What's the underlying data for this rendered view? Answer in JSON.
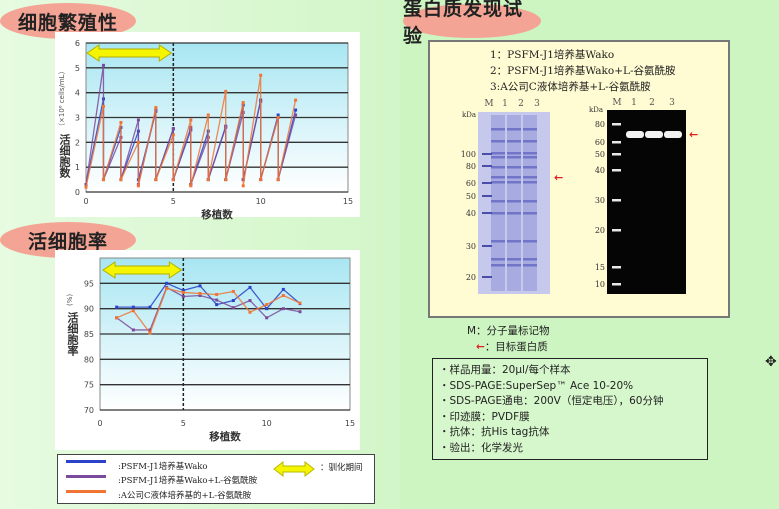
{
  "sections": {
    "proliferation_title": "细胞繁殖性",
    "viability_title": "活细胞率",
    "protein_title": "蛋白质发现试验"
  },
  "colors": {
    "wako": "#2c42c8",
    "wako_gln": "#7c4a9c",
    "companyA": "#f07434",
    "adapt_arrow": "#f5f500",
    "target_arrow": "#e02020",
    "title_pill": "#f4a494"
  },
  "chart_data": [
    {
      "type": "line",
      "title": "细胞繁殖性",
      "xlabel": "移植数",
      "ylabel": "活细胞数",
      "yunit": "（×10⁶ cells/mL）",
      "xlim": [
        0,
        15
      ],
      "ylim": [
        0,
        6
      ],
      "xticks": [
        "0",
        "5",
        "10",
        "15"
      ],
      "yticks": [
        "0",
        "1",
        "2",
        "3",
        "4",
        "5",
        "6"
      ],
      "grid": true,
      "adaptation_period": [
        0,
        5
      ],
      "series": [
        {
          "name": "PSFM-J1培养基Wako",
          "color": "#2c42c8",
          "points": [
            [
              0,
              0.3
            ],
            [
              1,
              3.75
            ],
            [
              1,
              0.5
            ],
            [
              2,
              2.6
            ],
            [
              2,
              0.5
            ],
            [
              3,
              2.45
            ],
            [
              3,
              0.5
            ],
            [
              4,
              3.25
            ],
            [
              4,
              0.5
            ],
            [
              5,
              2.55
            ],
            [
              5,
              0.5
            ],
            [
              6,
              2.5
            ],
            [
              6,
              0.3
            ],
            [
              7,
              2.45
            ],
            [
              7,
              0.5
            ],
            [
              8,
              2.65
            ],
            [
              8,
              0.5
            ],
            [
              9,
              3.5
            ],
            [
              9,
              0.5
            ],
            [
              10,
              3.7
            ],
            [
              10,
              0.5
            ],
            [
              11,
              3.1
            ],
            [
              11,
              0.5
            ],
            [
              12,
              3.3
            ]
          ]
        },
        {
          "name": "PSFM-J1培养基Wako+L-谷氨酰胺",
          "color": "#7c4a9c",
          "points": [
            [
              0,
              0.3
            ],
            [
              1,
              5.1
            ],
            [
              1,
              0.5
            ],
            [
              2,
              2.2
            ],
            [
              2,
              0.5
            ],
            [
              3,
              2.9
            ],
            [
              3,
              0.3
            ],
            [
              4,
              3.3
            ],
            [
              4,
              0.5
            ],
            [
              5,
              2.55
            ],
            [
              5,
              0.5
            ],
            [
              6,
              2.6
            ],
            [
              6,
              0.3
            ],
            [
              7,
              2.2
            ],
            [
              7,
              0.5
            ],
            [
              8,
              2.6
            ],
            [
              8,
              0.5
            ],
            [
              9,
              3.2
            ],
            [
              9,
              0.5
            ],
            [
              10,
              3.65
            ],
            [
              10,
              0.5
            ],
            [
              11,
              3.0
            ],
            [
              11,
              0.5
            ],
            [
              12,
              3.1
            ]
          ]
        },
        {
          "name": "A公司C液体培养基的+L-谷氨酰胺",
          "color": "#f07434",
          "points": [
            [
              0,
              0.2
            ],
            [
              1,
              3.45
            ],
            [
              1,
              0.5
            ],
            [
              2,
              2.8
            ],
            [
              2,
              0.5
            ],
            [
              3,
              2.0
            ],
            [
              3,
              0.25
            ],
            [
              4,
              3.4
            ],
            [
              4,
              0.5
            ],
            [
              5,
              2.3
            ],
            [
              5,
              0.5
            ],
            [
              6,
              2.9
            ],
            [
              6,
              0.25
            ],
            [
              7,
              3.1
            ],
            [
              7,
              0.5
            ],
            [
              8,
              4.05
            ],
            [
              8,
              0.5
            ],
            [
              9,
              3.6
            ],
            [
              9,
              0.25
            ],
            [
              10,
              4.7
            ],
            [
              10,
              0.5
            ],
            [
              11,
              3.0
            ],
            [
              11,
              0.5
            ],
            [
              12,
              3.7
            ]
          ]
        }
      ]
    },
    {
      "type": "line",
      "title": "活细胞率",
      "xlabel": "移植数",
      "ylabel": "活细胞率",
      "yunit": "(%)",
      "xlim": [
        0,
        15
      ],
      "ylim": [
        70,
        100
      ],
      "xticks": [
        "0",
        "5",
        "10",
        "15"
      ],
      "yticks": [
        "70",
        "75",
        "80",
        "85",
        "90",
        "95"
      ],
      "grid": true,
      "adaptation_period": [
        0,
        5
      ],
      "series": [
        {
          "name": "PSFM-J1培养基Wako",
          "color": "#2c42c8",
          "points": [
            [
              1,
              90.3
            ],
            [
              2,
              90.3
            ],
            [
              3,
              90.3
            ],
            [
              4,
              95
            ],
            [
              5,
              93.6
            ],
            [
              6,
              94.5
            ],
            [
              7,
              90.8
            ],
            [
              8,
              91.6
            ],
            [
              9,
              94.2
            ],
            [
              10,
              90
            ],
            [
              11,
              93.8
            ],
            [
              12,
              91
            ]
          ]
        },
        {
          "name": "PSFM-J1培养基Wako+L-谷氨酰胺",
          "color": "#7c4a9c",
          "points": [
            [
              1,
              88.2
            ],
            [
              2,
              85.8
            ],
            [
              3,
              85.8
            ],
            [
              4,
              94.2
            ],
            [
              5,
              92.4
            ],
            [
              6,
              92.6
            ],
            [
              7,
              91.7
            ],
            [
              8,
              90.2
            ],
            [
              9,
              91.6
            ],
            [
              10,
              88.2
            ],
            [
              11,
              90
            ],
            [
              12,
              89.4
            ]
          ]
        },
        {
          "name": "A公司C液体培养基的+L-谷氨酰胺",
          "color": "#f07434",
          "points": [
            [
              1,
              88.2
            ],
            [
              2,
              89.6
            ],
            [
              3,
              85.2
            ],
            [
              4,
              94
            ],
            [
              5,
              93.2
            ],
            [
              6,
              93
            ],
            [
              7,
              92.8
            ],
            [
              8,
              93.4
            ],
            [
              9,
              89.3
            ],
            [
              10,
              90.8
            ],
            [
              11,
              92.6
            ],
            [
              12,
              91.1
            ]
          ]
        }
      ]
    }
  ],
  "legend": {
    "items": [
      ":PSFM-J1培养基Wako",
      ":PSFM-J1培养基Wako+L-谷氨酰胺",
      ":A公司C液体培养基的+L-谷氨酰胺"
    ],
    "adaptation_label": "：驯化期间"
  },
  "gel": {
    "lane_key": [
      "1：PSFM-J1培养基Wako",
      "2：PSFM-J1培养基Wako+L-谷氨酰胺",
      "3:A公司C液体培养基+L-谷氨酰胺"
    ],
    "lanes": [
      "M",
      "1",
      "2",
      "3"
    ],
    "unit": "kDa",
    "sds_markers": [
      "100",
      "80",
      "60",
      "50",
      "40",
      "30",
      "20"
    ],
    "western_markers": [
      "80",
      "60",
      "50",
      "40",
      "30",
      "20",
      "15",
      "10"
    ]
  },
  "key": {
    "marker": "M：分子量标记物",
    "target": "：目标蛋白质"
  },
  "notes": [
    "・样品用量：20μl/每个样本",
    "・SDS-PAGE:SuperSep™ Ace 10-20%",
    "・SDS-PAGE通电：200V（恒定电压），60分钟",
    "・印迹膜：PVDF膜",
    "・抗体：抗His tag抗体",
    "・验出：化学发光"
  ]
}
